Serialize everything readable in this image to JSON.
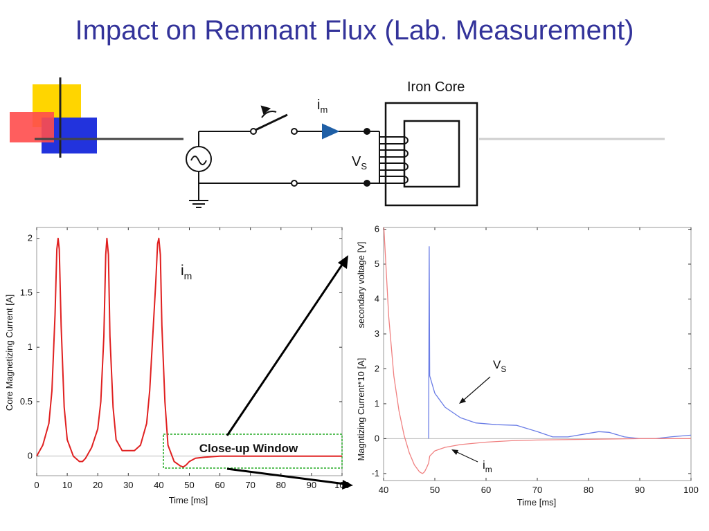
{
  "slide": {
    "title": "Impact on Remnant Flux (Lab. Measurement)"
  },
  "circuit": {
    "core_label": "Iron Core",
    "current_symbol": "i",
    "current_sub": "m",
    "voltage_symbol": "V",
    "voltage_sub": "S",
    "icons": [
      "ac-source-icon",
      "switch-icon",
      "ground-icon",
      "current-arrow-icon",
      "winding-coil-icon"
    ]
  },
  "colors": {
    "title": "#33339a",
    "current": "#e02020",
    "voltage": "#6a7de6",
    "arrow": "#1f5fa6",
    "window": "#22aa22"
  },
  "chart_data": [
    {
      "type": "line",
      "xlabel": "Time [ms]",
      "ylabel": "Core Magnetizing Current [A]",
      "xlim": [
        0,
        100
      ],
      "ylim": [
        -0.18,
        2.1
      ],
      "xticks": [
        0,
        10,
        20,
        30,
        40,
        50,
        60,
        70,
        80,
        90,
        100
      ],
      "xtick_labels": [
        "0",
        "10",
        "20",
        "30",
        "40",
        "50",
        "60",
        "70",
        "80",
        "90",
        "100"
      ],
      "yticks": [
        0,
        0.5,
        1,
        1.5,
        2
      ],
      "ytick_labels": [
        "0",
        "0.5",
        "1",
        "1.5",
        "2"
      ],
      "annotation": {
        "symbol": "i",
        "sub": "m"
      },
      "window_label": "Close-up Window",
      "window_range": {
        "x": [
          41,
          100
        ],
        "y": [
          -0.11,
          0.2
        ]
      },
      "series": [
        {
          "color": "#e02020",
          "x": [
            0,
            2,
            4,
            5,
            6,
            6.6,
            7,
            7.4,
            8,
            9,
            10,
            12,
            14,
            15,
            16,
            18,
            20,
            21,
            22,
            22.6,
            23,
            23.5,
            24,
            25,
            26,
            28,
            30,
            32,
            34,
            36,
            37,
            38,
            39,
            39.6,
            40,
            40.5,
            41,
            42,
            43,
            45,
            47,
            48,
            49,
            50,
            52,
            55,
            60,
            70,
            80,
            90,
            100
          ],
          "y": [
            0,
            0.1,
            0.3,
            0.6,
            1.3,
            1.9,
            2.0,
            1.9,
            1.2,
            0.45,
            0.15,
            0,
            -0.05,
            -0.05,
            -0.02,
            0.08,
            0.25,
            0.5,
            1.1,
            1.85,
            2.0,
            1.85,
            1.1,
            0.45,
            0.15,
            0.05,
            0.05,
            0.05,
            0.1,
            0.3,
            0.6,
            1.1,
            1.6,
            1.95,
            2.0,
            1.85,
            1.2,
            0.5,
            0.1,
            -0.05,
            -0.09,
            -0.1,
            -0.08,
            -0.05,
            -0.02,
            -0.01,
            0,
            0,
            0,
            0,
            0
          ]
        }
      ]
    },
    {
      "type": "line",
      "xlabel": "Time [ms]",
      "ylabel": "Magntizing Current*10 [A]",
      "ylabel2": "secondary voltage [V]",
      "xlim": [
        40,
        100
      ],
      "ylim": [
        -1.2,
        6.05
      ],
      "xticks": [
        40,
        50,
        60,
        70,
        80,
        90,
        100
      ],
      "xtick_labels": [
        "40",
        "50",
        "60",
        "70",
        "80",
        "90",
        "100"
      ],
      "yticks": [
        -1,
        0,
        1,
        2,
        3,
        4,
        5,
        6
      ],
      "ytick_labels": [
        "-1",
        "0",
        "1",
        "2",
        "3",
        "4",
        "5",
        "6"
      ],
      "annotations": [
        {
          "symbol": "V",
          "sub": "S"
        },
        {
          "symbol": "i",
          "sub": "m"
        }
      ],
      "series": [
        {
          "color": "#6a7de6",
          "x": [
            48.8,
            48.9,
            49,
            49.2,
            50,
            52,
            55,
            58,
            62,
            66,
            70,
            73,
            76,
            80,
            82,
            84,
            87,
            90,
            93,
            96,
            100
          ],
          "y": [
            0,
            5.5,
            1.8,
            1.7,
            1.3,
            0.9,
            0.6,
            0.45,
            0.4,
            0.38,
            0.2,
            0.05,
            0.05,
            0.15,
            0.2,
            0.18,
            0.05,
            0.0,
            0.0,
            0.05,
            0.1
          ]
        },
        {
          "color": "#f08080",
          "x": [
            40,
            41,
            42,
            43,
            44,
            45,
            46,
            47,
            47.6,
            48,
            48.5,
            48.8,
            49,
            50,
            52,
            55,
            60,
            65,
            70,
            80,
            90,
            100
          ],
          "y": [
            6.2,
            3.5,
            1.8,
            0.8,
            0.1,
            -0.4,
            -0.75,
            -0.95,
            -1.0,
            -0.95,
            -0.8,
            -0.7,
            -0.5,
            -0.35,
            -0.25,
            -0.17,
            -0.1,
            -0.06,
            -0.04,
            -0.02,
            0,
            0
          ]
        }
      ]
    }
  ]
}
